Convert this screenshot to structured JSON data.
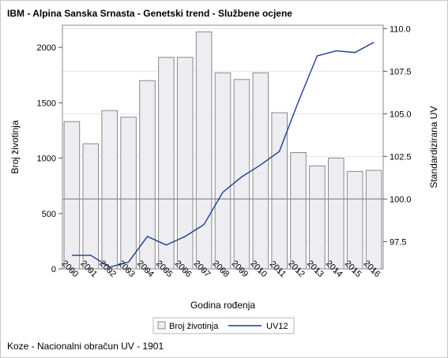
{
  "chart_title": "IBM - Alpina Sanska Srnasta - Genetski trend - Službene ocjene",
  "footnote": "Koze - Nacionalni obračun UV - 1901",
  "chart_data": {
    "type": "bar",
    "categories": [
      "2000",
      "2001",
      "2002",
      "2003",
      "2004",
      "2005",
      "2006",
      "2007",
      "2008",
      "2009",
      "2010",
      "2011",
      "2012",
      "2013",
      "2014",
      "2015",
      "2016"
    ],
    "xlabel": "Godina rođenja",
    "ylabel": "Broj životinja",
    "y2label": "Standardizirana UV",
    "ylim": [
      0,
      2200
    ],
    "y_ticks": [
      "0",
      "500",
      "1000",
      "1500",
      "2000"
    ],
    "y2lim": [
      95.9,
      110.2
    ],
    "y2_ticks": [
      "97.5",
      "100.0",
      "102.5",
      "105.0",
      "107.5",
      "110.0"
    ],
    "reference_line_y2": 100.0,
    "grid": true,
    "legend_position": "bottom-center",
    "series": [
      {
        "name": "Broj životinja",
        "type": "bar",
        "axis": "left",
        "color": "#ededf2",
        "stroke": "#8a8a8a",
        "values": [
          1330,
          1130,
          1430,
          1370,
          1700,
          1910,
          1910,
          2140,
          1770,
          1710,
          1770,
          1410,
          1050,
          930,
          1000,
          880,
          890
        ]
      },
      {
        "name": "UV12",
        "type": "line",
        "axis": "right",
        "color": "#1c3d91",
        "values": [
          96.7,
          96.7,
          96.0,
          96.3,
          97.8,
          97.3,
          97.8,
          98.5,
          100.4,
          101.3,
          102.0,
          102.8,
          105.7,
          108.4,
          108.7,
          108.6,
          109.2
        ]
      }
    ]
  }
}
